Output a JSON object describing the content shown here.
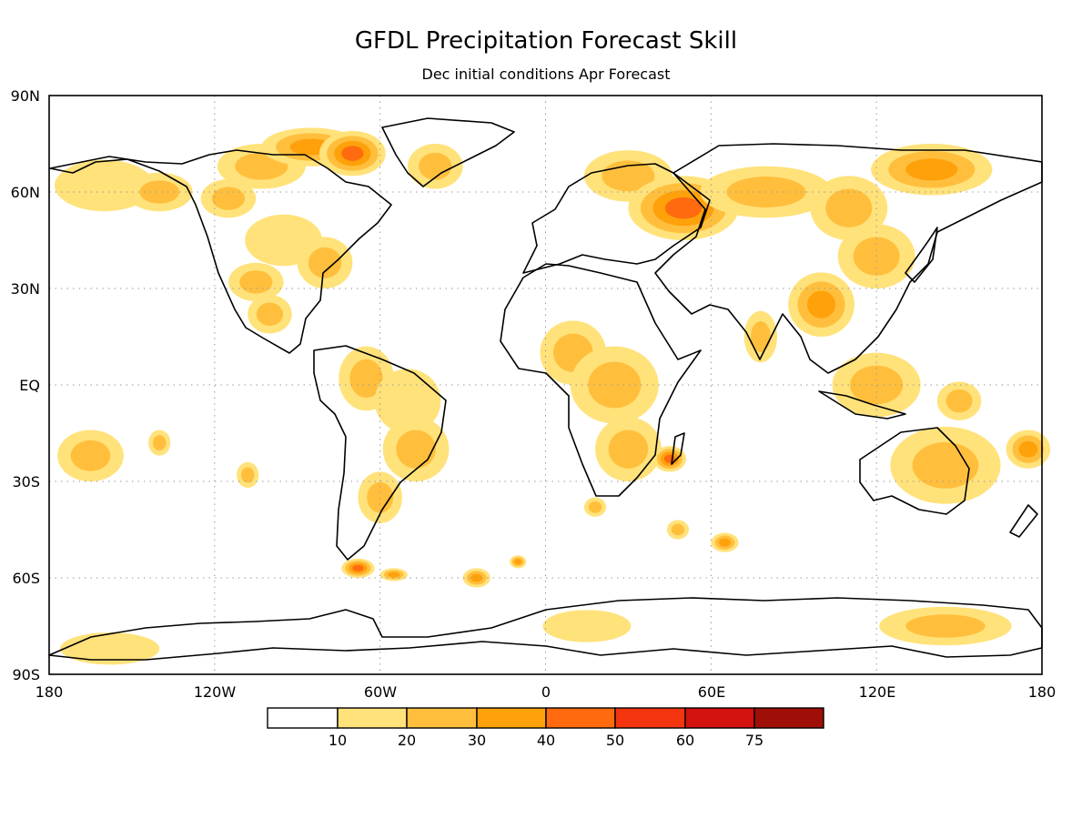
{
  "title": "GFDL Precipitation Forecast Skill",
  "subtitle": "Dec initial conditions  Apr Forecast",
  "lat_ticks": [
    "90N",
    "60N",
    "30N",
    "EQ",
    "30S",
    "60S",
    "90S"
  ],
  "lon_ticks": [
    "180",
    "120W",
    "60W",
    "0",
    "60E",
    "120E",
    "180"
  ],
  "colorbar": {
    "labels": [
      "10",
      "20",
      "30",
      "40",
      "50",
      "60",
      "75"
    ],
    "colors": [
      "#ffffff",
      "#ffe27a",
      "#ffbf3d",
      "#ffa10b",
      "#ff6b0e",
      "#f5350f",
      "#d4120f",
      "#a00e08"
    ]
  },
  "map": {
    "lon_range": [
      -180,
      180
    ],
    "lat_range": [
      -90,
      90
    ],
    "gridlines": "dotted",
    "coastlines": true,
    "skill_blobs": [
      {
        "lon": -165,
        "lat": -22,
        "w": 12,
        "h": 8,
        "level": 2
      },
      {
        "lon": -140,
        "lat": -18,
        "w": 4,
        "h": 4,
        "level": 2
      },
      {
        "lon": -108,
        "lat": -28,
        "w": 4,
        "h": 4,
        "level": 2
      },
      {
        "lon": -160,
        "lat": 62,
        "w": 18,
        "h": 8,
        "level": 1
      },
      {
        "lon": -140,
        "lat": 60,
        "w": 12,
        "h": 6,
        "level": 2
      },
      {
        "lon": -115,
        "lat": 58,
        "w": 10,
        "h": 6,
        "level": 2
      },
      {
        "lon": -103,
        "lat": 68,
        "w": 16,
        "h": 7,
        "level": 2
      },
      {
        "lon": -85,
        "lat": 74,
        "w": 18,
        "h": 6,
        "level": 3
      },
      {
        "lon": -70,
        "lat": 72,
        "w": 12,
        "h": 7,
        "level": 4
      },
      {
        "lon": -40,
        "lat": 68,
        "w": 10,
        "h": 7,
        "level": 2
      },
      {
        "lon": -95,
        "lat": 45,
        "w": 14,
        "h": 8,
        "level": 1
      },
      {
        "lon": -80,
        "lat": 38,
        "w": 10,
        "h": 8,
        "level": 2
      },
      {
        "lon": -105,
        "lat": 32,
        "w": 10,
        "h": 6,
        "level": 2
      },
      {
        "lon": -100,
        "lat": 22,
        "w": 8,
        "h": 6,
        "level": 2
      },
      {
        "lon": -65,
        "lat": 2,
        "w": 10,
        "h": 10,
        "level": 2
      },
      {
        "lon": -50,
        "lat": -5,
        "w": 12,
        "h": 10,
        "level": 1
      },
      {
        "lon": -47,
        "lat": -20,
        "w": 12,
        "h": 10,
        "level": 2
      },
      {
        "lon": -60,
        "lat": -35,
        "w": 8,
        "h": 8,
        "level": 2
      },
      {
        "lon": -68,
        "lat": -57,
        "w": 6,
        "h": 3,
        "level": 4
      },
      {
        "lon": -55,
        "lat": -59,
        "w": 5,
        "h": 2,
        "level": 3
      },
      {
        "lon": -25,
        "lat": -60,
        "w": 5,
        "h": 3,
        "level": 3
      },
      {
        "lon": -10,
        "lat": -55,
        "w": 3,
        "h": 2,
        "level": 3
      },
      {
        "lon": 10,
        "lat": 10,
        "w": 12,
        "h": 10,
        "level": 2
      },
      {
        "lon": 25,
        "lat": 0,
        "w": 16,
        "h": 12,
        "level": 2
      },
      {
        "lon": 30,
        "lat": -20,
        "w": 12,
        "h": 10,
        "level": 2
      },
      {
        "lon": 45,
        "lat": -23,
        "w": 6,
        "h": 4,
        "level": 4
      },
      {
        "lon": 18,
        "lat": -38,
        "w": 4,
        "h": 3,
        "level": 2
      },
      {
        "lon": 48,
        "lat": -45,
        "w": 4,
        "h": 3,
        "level": 2
      },
      {
        "lon": 65,
        "lat": -49,
        "w": 5,
        "h": 3,
        "level": 3
      },
      {
        "lon": 30,
        "lat": 65,
        "w": 16,
        "h": 8,
        "level": 2
      },
      {
        "lon": 50,
        "lat": 55,
        "w": 20,
        "h": 10,
        "level": 4
      },
      {
        "lon": 80,
        "lat": 60,
        "w": 24,
        "h": 8,
        "level": 2
      },
      {
        "lon": 140,
        "lat": 67,
        "w": 22,
        "h": 8,
        "level": 3
      },
      {
        "lon": 110,
        "lat": 55,
        "w": 14,
        "h": 10,
        "level": 2
      },
      {
        "lon": 120,
        "lat": 40,
        "w": 14,
        "h": 10,
        "level": 2
      },
      {
        "lon": 100,
        "lat": 25,
        "w": 12,
        "h": 10,
        "level": 3
      },
      {
        "lon": 78,
        "lat": 15,
        "w": 6,
        "h": 8,
        "level": 2
      },
      {
        "lon": 120,
        "lat": 0,
        "w": 16,
        "h": 10,
        "level": 2
      },
      {
        "lon": 145,
        "lat": -25,
        "w": 20,
        "h": 12,
        "level": 2
      },
      {
        "lon": 150,
        "lat": -5,
        "w": 8,
        "h": 6,
        "level": 2
      },
      {
        "lon": 175,
        "lat": -20,
        "w": 8,
        "h": 6,
        "level": 3
      },
      {
        "lon": 15,
        "lat": -75,
        "w": 16,
        "h": 5,
        "level": 1
      },
      {
        "lon": 145,
        "lat": -75,
        "w": 24,
        "h": 6,
        "level": 2
      },
      {
        "lon": -158,
        "lat": -82,
        "w": 18,
        "h": 5,
        "level": 1
      }
    ]
  }
}
